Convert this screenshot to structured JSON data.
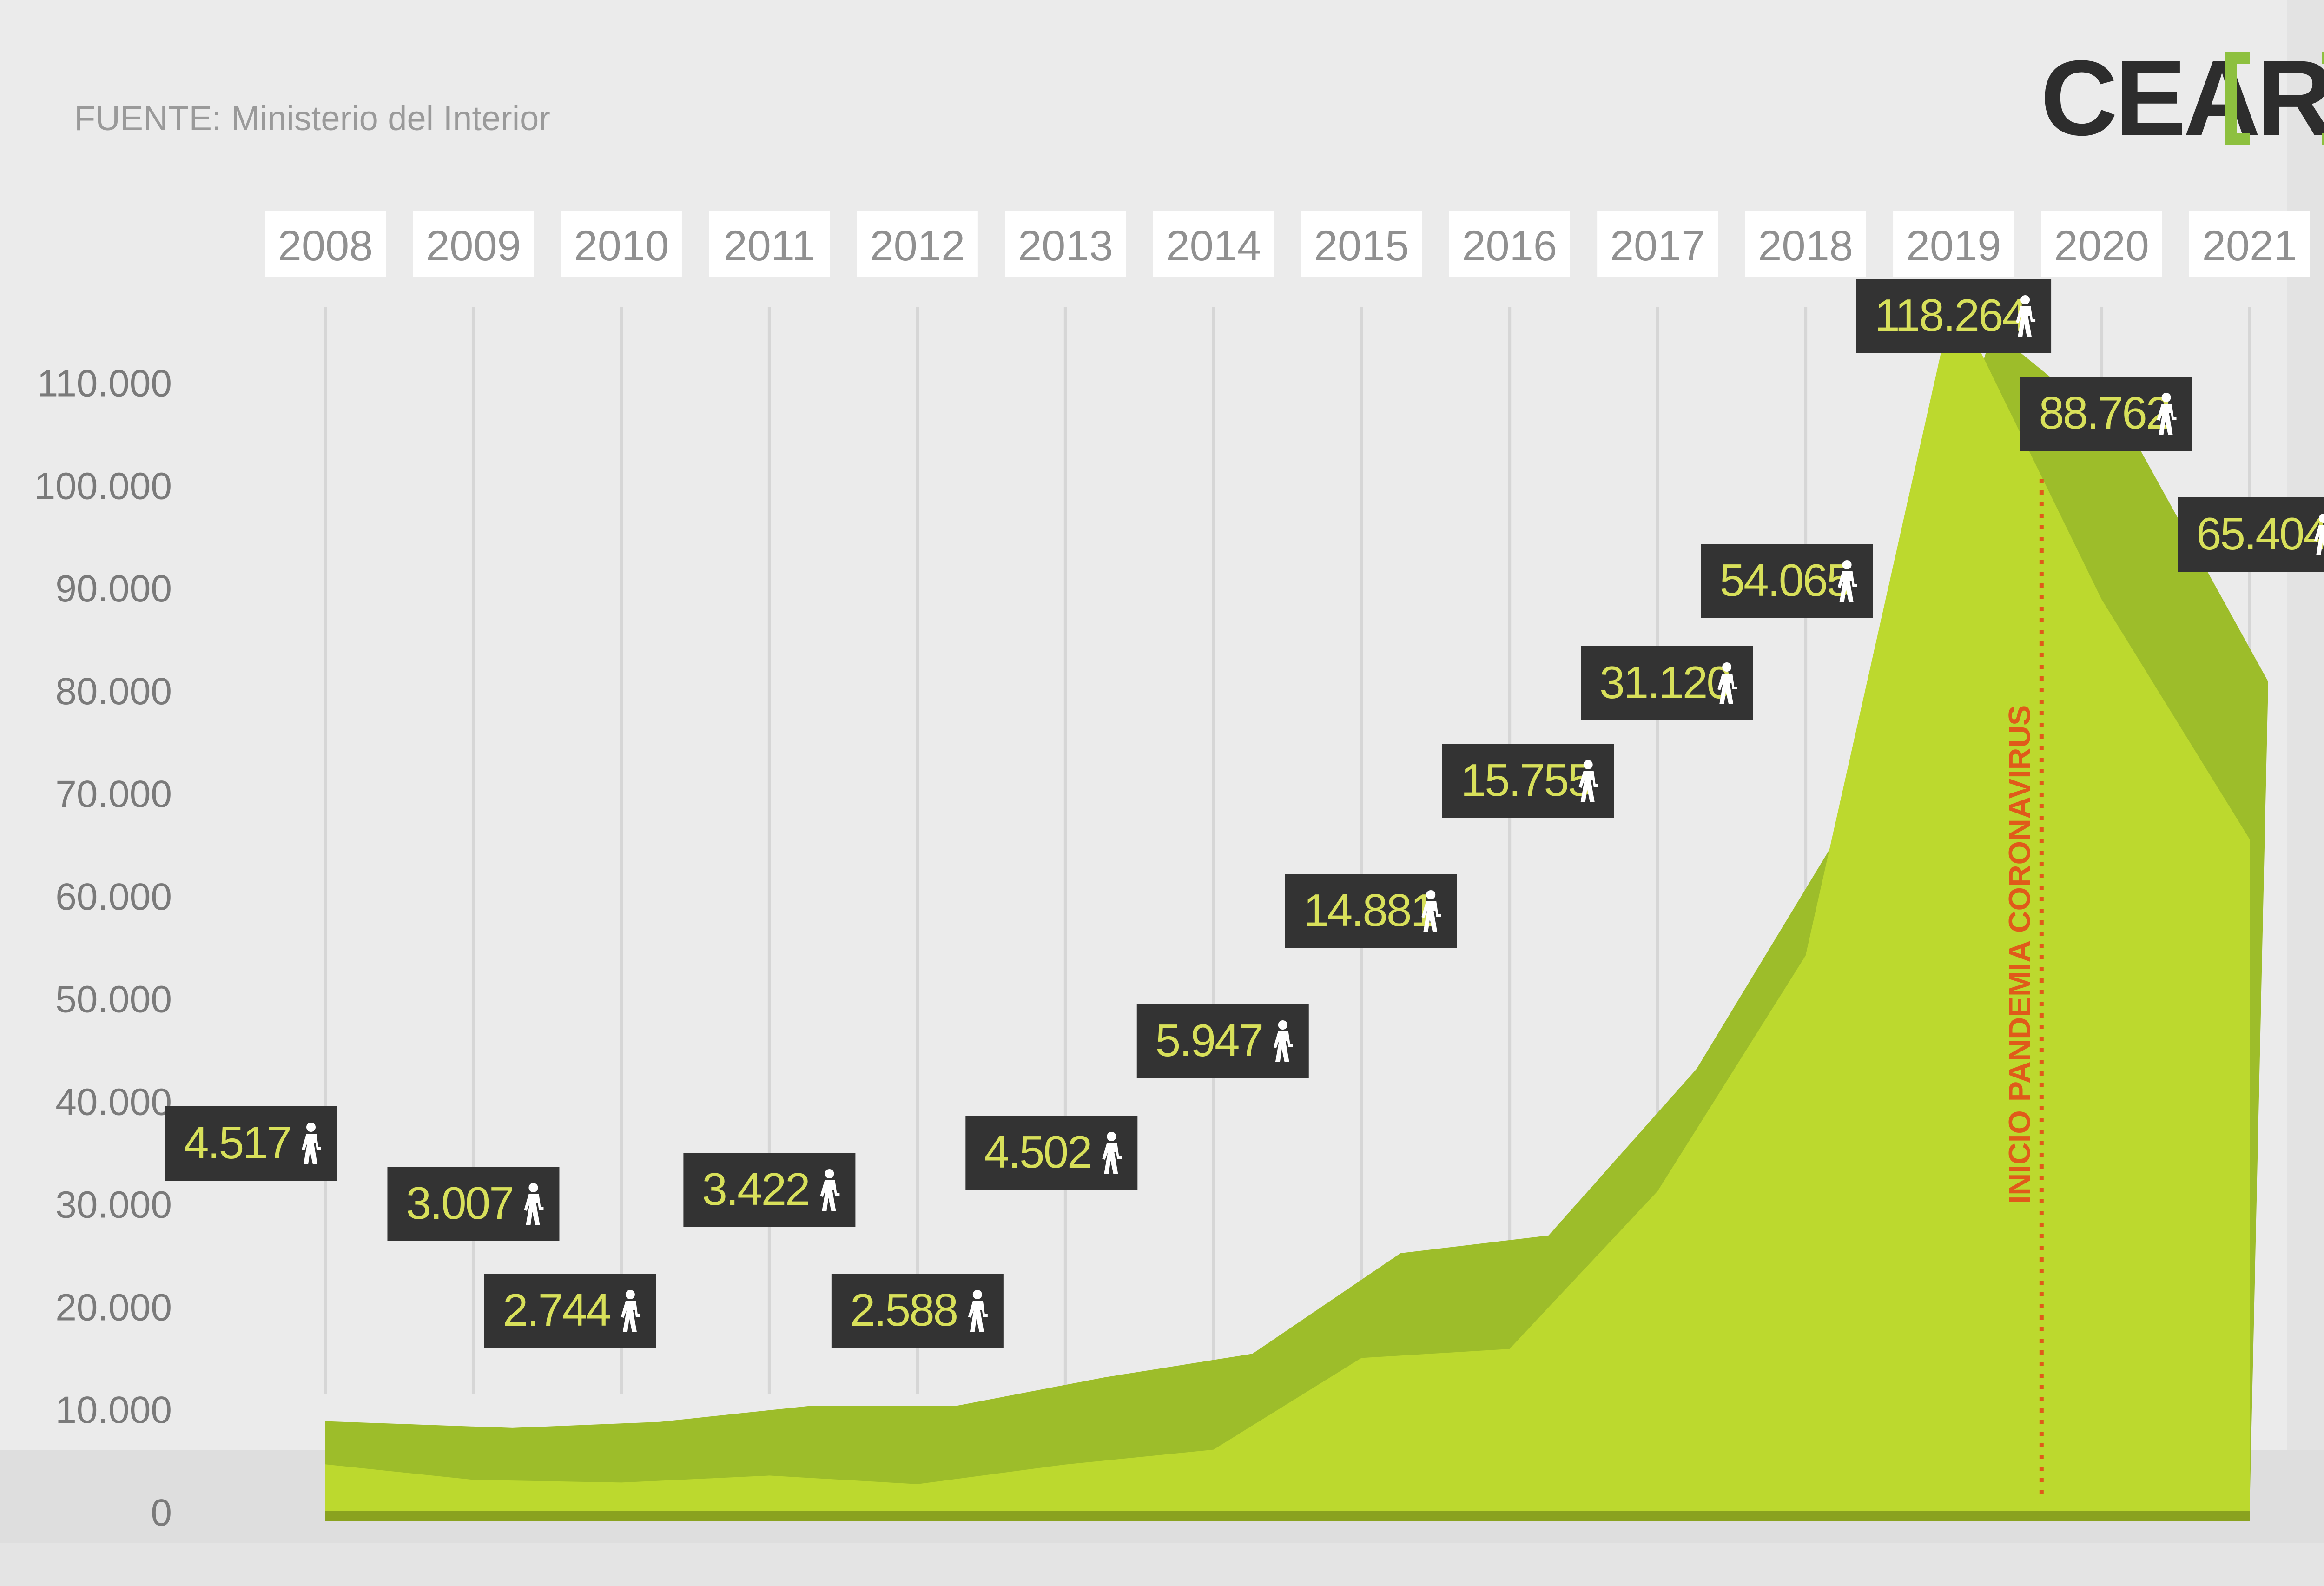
{
  "source": "FUENTE: Ministerio del Interior",
  "logo": {
    "text": "CEAR",
    "bracket_color": "#8dc03f",
    "text_color": "#2d2d2d"
  },
  "annotation": {
    "text": "INICIO PANDEMIA CORONAVIRUS",
    "color": "#e05a1a"
  },
  "person_icon": "person-walking-icon",
  "colors": {
    "background": "#ebebeb",
    "area_front": "#bcd92e",
    "area_back": "#9dbd2a",
    "label_box": "#333333",
    "label_text": "#d8e05a",
    "year_box": "#ffffff",
    "year_text": "#909090",
    "axis_text": "#7a7a7a",
    "gridline": "#d6d6d6"
  },
  "chart_data": {
    "type": "area",
    "x": [
      "2008",
      "2009",
      "2010",
      "2011",
      "2012",
      "2013",
      "2014",
      "2015",
      "2016",
      "2017",
      "2018",
      "2019",
      "2020",
      "2021"
    ],
    "series": [
      {
        "values": [
          4517,
          3007,
          2744,
          3422,
          2588,
          4502,
          5947,
          14881,
          15755,
          31120,
          54065,
          118264,
          88762,
          65404
        ]
      }
    ],
    "data_labels": [
      "4.517",
      "3.007",
      "2.744",
      "3.422",
      "2.588",
      "4.502",
      "5.947",
      "14.881",
      "15.755",
      "31.120",
      "54.065",
      "118.264",
      "88.762",
      "65.404"
    ],
    "y_ticks": [
      "0",
      "10.000",
      "20.000",
      "30.000",
      "40.000",
      "50.000",
      "60.000",
      "70.000",
      "80.000",
      "90.000",
      "100.000",
      "110.000"
    ],
    "ylim": [
      0,
      115000
    ],
    "xlabel": "",
    "ylabel": "",
    "annotation_between": [
      "2019",
      "2020"
    ],
    "grid": true
  }
}
